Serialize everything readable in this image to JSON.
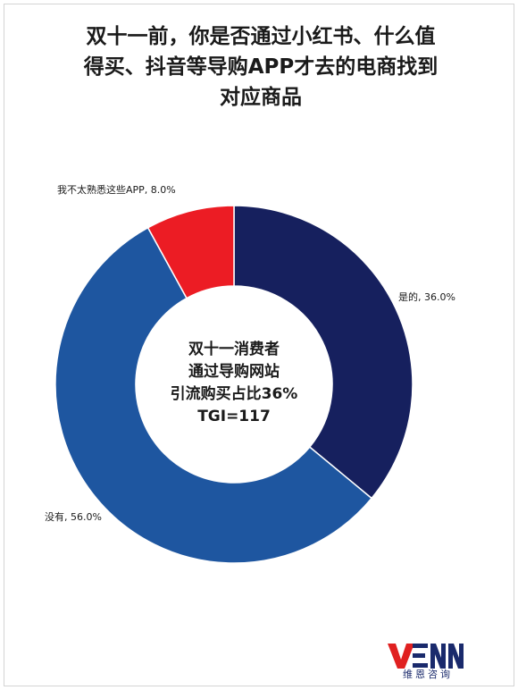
{
  "title_lines": [
    "双十一前，你是否通过小红书、什么值",
    "得买、抖音等导购APP才去的电商找到",
    "对应商品"
  ],
  "chart_data": {
    "type": "pie",
    "title": "双十一前，你是否通过小红书、什么值得买、抖音等导购APP才去的电商找到对应商品",
    "categories": [
      "是的",
      "没有",
      "我不太熟悉这些APP"
    ],
    "values": [
      36.0,
      56.0,
      8.0
    ],
    "unit": "%",
    "labels": [
      "是的, 36.0%",
      "没有, 56.0%",
      "我不太熟悉这些APP, 8.0%"
    ],
    "colors": [
      "#16205e",
      "#1e56a0",
      "#ec1c24"
    ],
    "donut": true,
    "center_text": [
      "双十一消费者",
      "通过导购网站",
      "引流购买占比36%",
      "TGI=117"
    ]
  },
  "logo": {
    "mark": "VENN",
    "name": "维恩咨询",
    "colors": [
      "#1a2a6c",
      "#e02020"
    ]
  }
}
